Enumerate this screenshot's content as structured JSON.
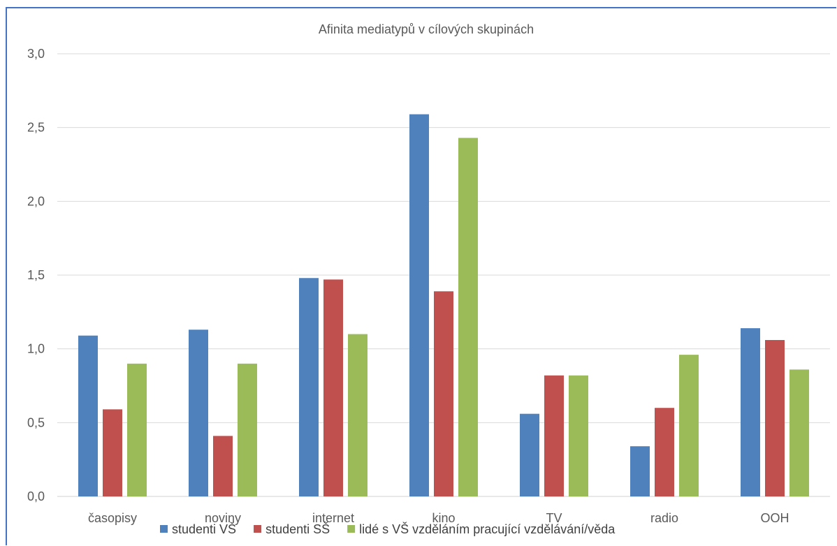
{
  "chart_data": {
    "type": "bar",
    "title": "Afinita mediatypů v cílových skupinách",
    "categories": [
      "časopisy",
      "noviny",
      "internet",
      "kino",
      "TV",
      "radio",
      "OOH"
    ],
    "series": [
      {
        "name": "studenti VŠ",
        "color": "#4f81bd",
        "values": [
          1.09,
          1.13,
          1.48,
          2.59,
          0.56,
          0.34,
          1.14
        ]
      },
      {
        "name": "studenti SŠ",
        "color": "#c0504d",
        "values": [
          0.59,
          0.41,
          1.47,
          1.39,
          0.82,
          0.6,
          1.06
        ]
      },
      {
        "name": "lidé s VŠ vzděláním pracující vzdělávání/věda",
        "color": "#9bbb59",
        "values": [
          0.9,
          0.9,
          1.1,
          2.43,
          0.82,
          0.96,
          0.86
        ]
      }
    ],
    "y_ticks": [
      "0,0",
      "0,5",
      "1,0",
      "1,5",
      "2,0",
      "2,5",
      "3,0"
    ],
    "ylim": [
      0,
      3.0
    ],
    "grid": true,
    "legend_position": "bottom"
  }
}
